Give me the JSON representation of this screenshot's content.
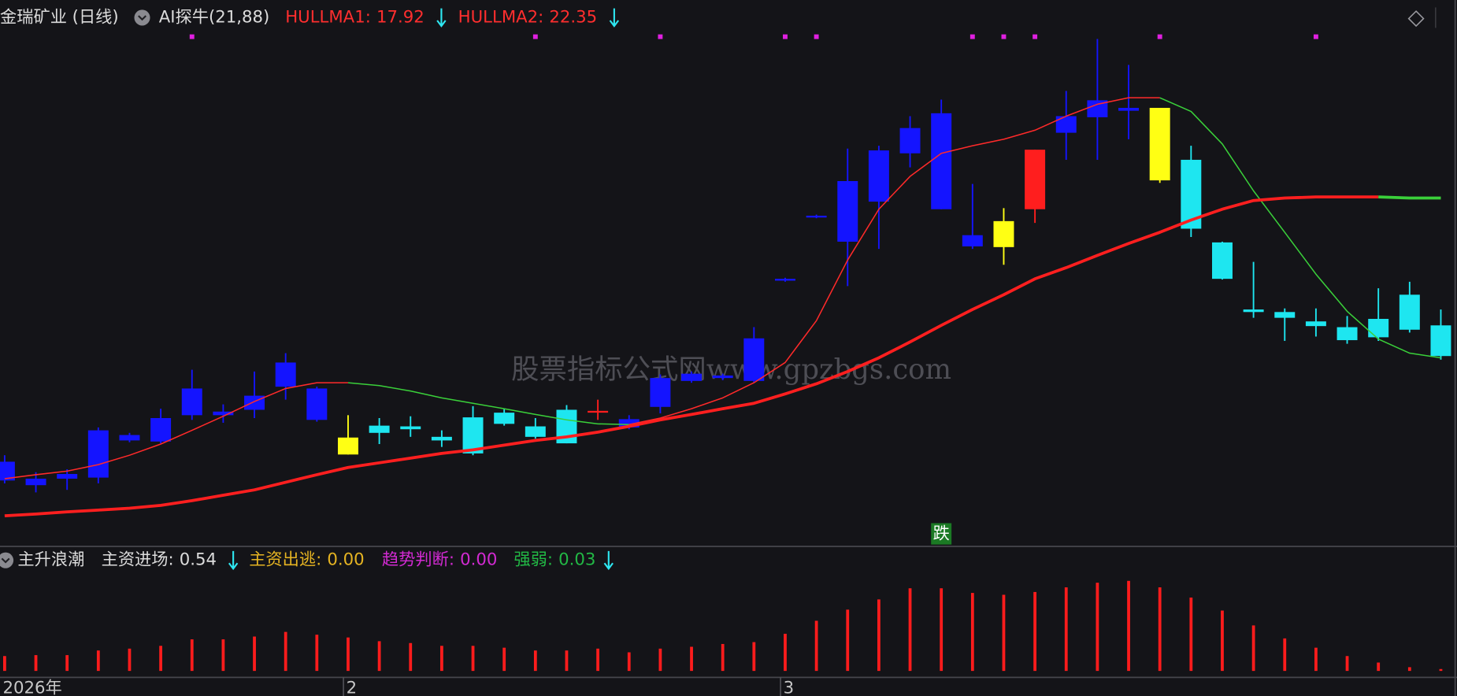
{
  "chart_data": [
    {
      "type": "candlestick",
      "title": "金瑞矿业 (日线)",
      "subtitle": "AI探牛(21,88)",
      "ylim": [
        12.77,
        27.84
      ],
      "open": [
        14.52,
        14.39,
        14.57,
        14.6,
        15.63,
        15.6,
        16.33,
        16.33,
        16.48,
        17.12,
        16.2,
        15.24,
        15.84,
        15.94,
        15.63,
        15.27,
        16.09,
        15.73,
        15.55,
        16.4,
        15.99,
        16.56,
        17.28,
        17.36,
        17.28,
        20.06,
        21.81,
        21.14,
        22.25,
        23.59,
        22.04,
        21.01,
        20.99,
        22.04,
        24.16,
        24.59,
        24.77,
        22.84,
        21.5,
        20.11,
        19.19,
        19.03,
        18.8,
        18.41,
        18.49,
        18.7,
        17.97
      ],
      "close": [
        15.04,
        14.57,
        14.7,
        15.91,
        15.78,
        16.25,
        17.07,
        16.43,
        16.87,
        17.79,
        17.07,
        15.71,
        16.04,
        16.02,
        15.73,
        16.27,
        16.4,
        16.02,
        16.48,
        16.45,
        16.22,
        17.36,
        17.48,
        17.43,
        18.46,
        20.11,
        21.86,
        22.82,
        23.67,
        24.29,
        24.7,
        21.32,
        21.71,
        23.69,
        24.62,
        25.06,
        24.85,
        24.85,
        23.41,
        21.12,
        19.26,
        19.19,
        18.93,
        18.77,
        19.0,
        19.67,
        18.82
      ],
      "high": [
        15.22,
        14.75,
        14.83,
        15.99,
        15.84,
        16.51,
        17.59,
        16.63,
        17.54,
        18.05,
        17.12,
        16.33,
        16.25,
        16.3,
        15.91,
        16.58,
        16.51,
        16.25,
        16.61,
        16.76,
        16.33,
        17.46,
        17.54,
        17.48,
        18.77,
        20.14,
        21.89,
        23.72,
        23.8,
        24.62,
        25.08,
        22.74,
        22.07,
        23.69,
        25.32,
        26.76,
        26.04,
        24.85,
        23.8,
        21.14,
        20.58,
        19.29,
        19.29,
        19.08,
        19.85,
        20.03,
        19.26
      ],
      "low": [
        14.44,
        14.19,
        14.26,
        14.44,
        15.58,
        15.55,
        16.2,
        16.12,
        16.25,
        16.76,
        16.15,
        15.24,
        15.53,
        15.73,
        15.45,
        15.22,
        16.04,
        15.68,
        15.55,
        16.2,
        15.94,
        16.38,
        17.23,
        17.3,
        17.23,
        20.03,
        21.79,
        19.91,
        20.94,
        23.2,
        22.04,
        20.94,
        20.5,
        21.66,
        23.41,
        23.41,
        23.98,
        22.77,
        21.27,
        20.09,
        19.03,
        18.39,
        18.51,
        18.31,
        18.39,
        18.62,
        17.87
      ],
      "candle_colors": [
        "#1414ff",
        "#1414ff",
        "#1414ff",
        "#1414ff",
        "#1414ff",
        "#1414ff",
        "#1414ff",
        "#1414ff",
        "#1414ff",
        "#1414ff",
        "#1414ff",
        "#ffff14",
        "#1ee6f0",
        "#1ee6f0",
        "#1ee6f0",
        "#1ee6f0",
        "#1ee6f0",
        "#1ee6f0",
        "#1ee6f0",
        "#ff1e1e",
        "#1414ff",
        "#1414ff",
        "#1414ff",
        "#1414ff",
        "#1414ff",
        "#1414ff",
        "#1414ff",
        "#1414ff",
        "#1414ff",
        "#1414ff",
        "#1414ff",
        "#1414ff",
        "#ffff14",
        "#ff1e1e",
        "#1414ff",
        "#1414ff",
        "#1414ff",
        "#ffff14",
        "#1ee6f0",
        "#1ee6f0",
        "#1ee6f0",
        "#1ee6f0",
        "#1ee6f0",
        "#1ee6f0",
        "#1ee6f0",
        "#1ee6f0",
        "#1ee6f0"
      ],
      "series": [
        {
          "name": "HULLMA1:",
          "color": "#ff2a2a",
          "down_color": "#3ad03a",
          "width": 1.3,
          "values": [
            14.57,
            14.68,
            14.78,
            14.96,
            15.22,
            15.53,
            15.91,
            16.3,
            16.71,
            17.07,
            17.23,
            17.23,
            17.15,
            17.0,
            16.81,
            16.66,
            16.51,
            16.35,
            16.2,
            16.09,
            16.07,
            16.25,
            16.51,
            16.81,
            17.23,
            17.79,
            18.95,
            20.63,
            22.04,
            22.95,
            23.59,
            23.8,
            23.98,
            24.23,
            24.62,
            24.95,
            25.13,
            25.13,
            24.75,
            23.85,
            22.55,
            21.4,
            20.24,
            19.21,
            18.44,
            18.05,
            17.92
          ]
        },
        {
          "name": "HULLMA2:",
          "color": "#ff1f1f",
          "down_color": "#3ad03a",
          "width": 3.2,
          "values": [
            13.54,
            13.59,
            13.65,
            13.7,
            13.75,
            13.83,
            13.96,
            14.11,
            14.26,
            14.47,
            14.68,
            14.88,
            15.01,
            15.14,
            15.27,
            15.37,
            15.5,
            15.63,
            15.73,
            15.86,
            16.02,
            16.2,
            16.35,
            16.51,
            16.66,
            16.92,
            17.2,
            17.54,
            17.92,
            18.36,
            18.82,
            19.26,
            19.67,
            20.11,
            20.42,
            20.76,
            21.09,
            21.4,
            21.74,
            22.04,
            22.28,
            22.35,
            22.38,
            22.38,
            22.38,
            22.35,
            22.35
          ]
        }
      ],
      "signals": [
        6,
        17,
        21,
        25,
        26,
        31,
        32,
        33,
        37,
        42
      ],
      "signal_color": "#e020e0",
      "annotations": [
        {
          "text": "跌",
          "index": 30
        }
      ],
      "watermark": "股票指标公式网www.gpzbgs.com"
    },
    {
      "type": "bar",
      "title": "主升浪潮",
      "ylim": [
        0,
        30
      ],
      "categories": [
        "2026年",
        null,
        null,
        null,
        null,
        null,
        null,
        null,
        null,
        null,
        null,
        "2",
        null,
        null,
        null,
        null,
        null,
        null,
        null,
        null,
        null,
        null,
        null,
        null,
        null,
        "3",
        null,
        null,
        null,
        null,
        null,
        null,
        null,
        null,
        null,
        null,
        null,
        null,
        null,
        null,
        null,
        null,
        null,
        null,
        null,
        null,
        null
      ],
      "series": [
        {
          "name": "主资进场:",
          "color": "#ff1c1c",
          "values": [
            4.32,
            4.59,
            4.59,
            5.94,
            6.48,
            7.29,
            9.18,
            9.18,
            9.99,
            11.34,
            10.53,
            9.72,
            8.64,
            8.1,
            7.29,
            7.29,
            6.75,
            5.94,
            5.94,
            6.48,
            5.4,
            6.48,
            7.02,
            7.83,
            8.37,
            10.8,
            14.58,
            17.82,
            20.79,
            24.03,
            24.03,
            22.68,
            22.14,
            22.95,
            24.3,
            25.65,
            26.19,
            24.3,
            21.33,
            17.55,
            13.23,
            9.45,
            6.75,
            4.32,
            2.43,
            1.08,
            0.54
          ]
        }
      ],
      "readouts": [
        {
          "name": "主资出逃:",
          "value": "0.00",
          "color": "#e6b422"
        },
        {
          "name": "趋势判断:",
          "value": "0.00",
          "color": "#d22ad2"
        },
        {
          "name": "强弱:",
          "value": "0.03",
          "color": "#22b845"
        }
      ]
    }
  ]
}
